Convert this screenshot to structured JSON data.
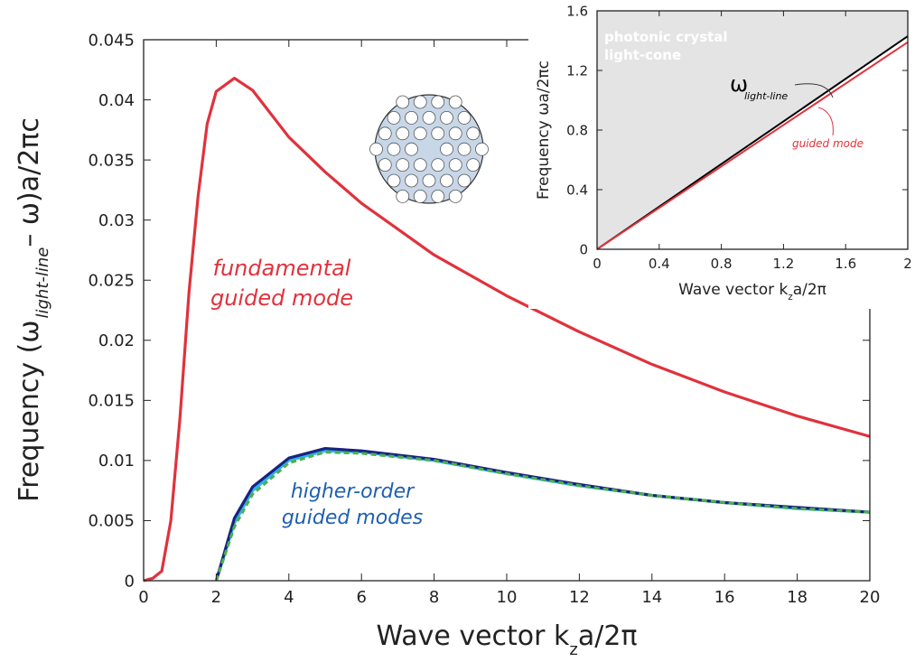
{
  "chart_data": [
    {
      "type": "line",
      "xlabel": {
        "parts": [
          "Wave vector  k",
          "z",
          "a/2π"
        ]
      },
      "ylabel": {
        "parts": [
          "Frequency  (ω",
          "light-line",
          "– ω)a/2πc"
        ]
      },
      "x": [
        0,
        0.25,
        0.5,
        0.75,
        1,
        1.25,
        1.5,
        1.75,
        2,
        2.5,
        3,
        4,
        5,
        6,
        8,
        10,
        12,
        14,
        16,
        18,
        20
      ],
      "series": [
        {
          "color": "#e0323c",
          "values": [
            0,
            0.0002,
            0.0008,
            0.005,
            0.0135,
            0.024,
            0.032,
            0.038,
            0.0407,
            0.0418,
            0.0408,
            0.0369,
            0.034,
            0.0314,
            0.0271,
            0.0237,
            0.0207,
            0.018,
            0.0157,
            0.0137,
            0.012
          ]
        },
        {
          "color": "#29b6f6",
          "values": [
            null,
            null,
            null,
            null,
            null,
            null,
            null,
            null,
            0,
            0.0048,
            0.0075,
            0.01,
            0.0108,
            0.0107,
            0.01,
            0.0089,
            0.0079,
            0.0071,
            0.0065,
            0.006,
            0.0057
          ]
        },
        {
          "color": "#1a237e",
          "values": [
            null,
            null,
            null,
            null,
            null,
            null,
            null,
            null,
            0,
            0.0052,
            0.0078,
            0.0102,
            0.011,
            0.0108,
            0.0101,
            0.009,
            0.008,
            0.0071,
            0.0065,
            0.0061,
            0.0057
          ]
        },
        {
          "color": "#4caf50",
          "dashed": true,
          "values": [
            null,
            null,
            null,
            null,
            null,
            null,
            null,
            null,
            0,
            0.0045,
            0.0072,
            0.0098,
            0.0107,
            0.0106,
            0.01,
            0.0089,
            0.0079,
            0.0071,
            0.0065,
            0.006,
            0.0057
          ]
        }
      ],
      "xlim": [
        0,
        20
      ],
      "xticks": [
        0,
        2,
        4,
        6,
        8,
        10,
        12,
        14,
        16,
        18,
        20
      ],
      "ylim": [
        0,
        0.045
      ],
      "yticks": [
        0,
        0.005,
        0.01,
        0.015,
        0.02,
        0.025,
        0.03,
        0.035,
        0.04,
        0.045
      ],
      "annotations": [
        {
          "text": [
            "fundamental",
            "guided mode"
          ],
          "color": "#e0323c"
        },
        {
          "text": [
            "higher-order",
            "guided modes"
          ],
          "color": "#1f5fb0"
        }
      ]
    },
    {
      "type": "line",
      "xlabel": {
        "parts": [
          "Wave vector  k",
          "z",
          "a/2π"
        ]
      },
      "ylabel": {
        "parts": [
          "Frequency  ωa/2πc"
        ]
      },
      "x": [
        0,
        2
      ],
      "series": [
        {
          "color": "#000000",
          "values": [
            0,
            1.43
          ]
        },
        {
          "color": "#e0323c",
          "values": [
            0,
            1.39
          ]
        }
      ],
      "light_cone_fill": "#e4e4e4",
      "xlim": [
        0,
        2
      ],
      "xticks": [
        0,
        0.4,
        0.8,
        1.2,
        1.6,
        2
      ],
      "ylim": [
        0,
        1.6
      ],
      "yticks": [
        0,
        0.4,
        0.8,
        1.2,
        1.6
      ],
      "annotations": [
        {
          "text": [
            "photonic crystal",
            "light-cone"
          ],
          "color": "#ffffff"
        },
        {
          "text": [
            "ω"
          ],
          "sub": "light-line",
          "color": "#000000"
        },
        {
          "text": [
            "guided mode"
          ],
          "color": "#e0323c"
        }
      ]
    }
  ]
}
